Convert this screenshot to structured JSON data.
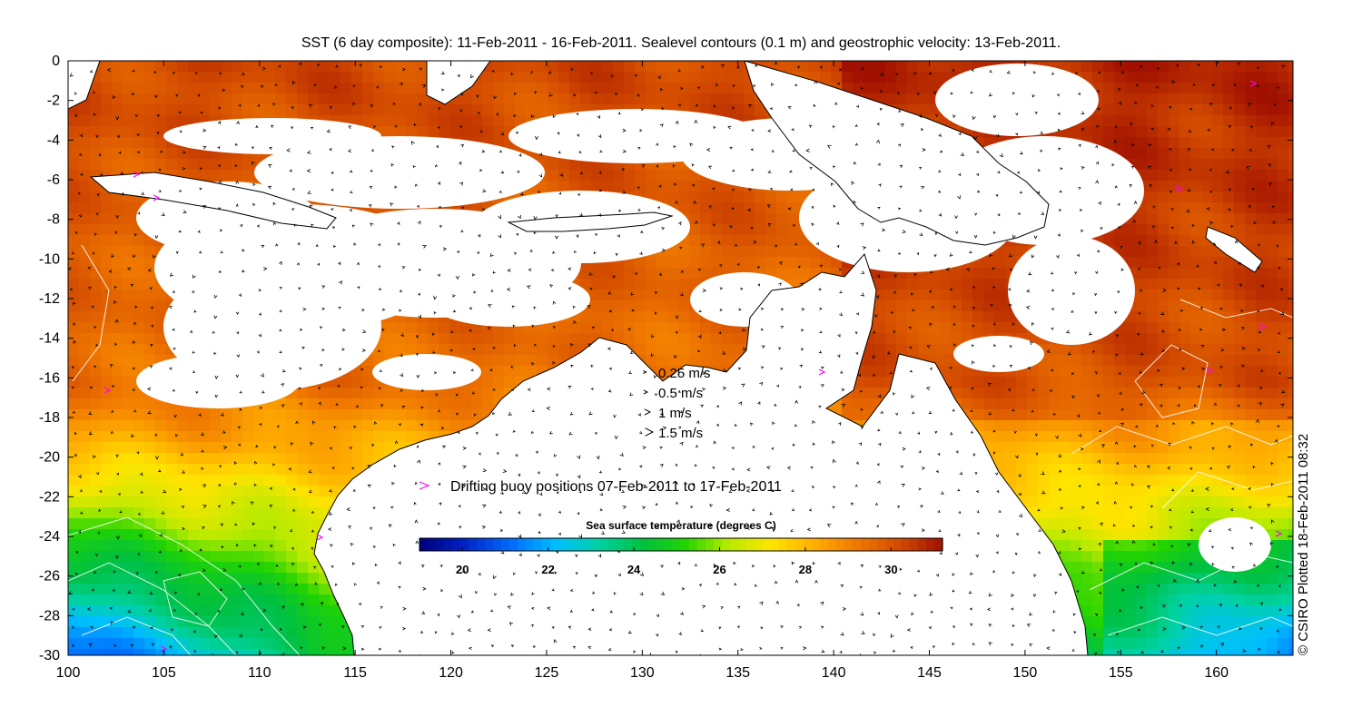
{
  "title": "SST (6 day composite): 11-Feb-2011 - 16-Feb-2011. Sealevel contours (0.1 m) and geostrophic velocity: 13-Feb-2011.",
  "credit": "© CSIRO Plotted 18-Feb-2011 08:32",
  "x_axis": {
    "min": 100,
    "max": 164,
    "ticks": [
      "100",
      "105",
      "110",
      "115",
      "120",
      "125",
      "130",
      "135",
      "140",
      "145",
      "150",
      "155",
      "160"
    ]
  },
  "y_axis": {
    "min": -30,
    "max": 0,
    "ticks": [
      "0",
      "-2",
      "-4",
      "-6",
      "-8",
      "-10",
      "-12",
      "-14",
      "-16",
      "-18",
      "-20",
      "-22",
      "-24",
      "-26",
      "-28",
      "-30"
    ]
  },
  "velocity_legend": [
    {
      "label": "0.25 m/s",
      "speed": 0.25
    },
    {
      "label": "0.5 m/s",
      "speed": 0.5
    },
    {
      "label": "1 m/s",
      "speed": 1
    },
    {
      "label": "1.5 m/s",
      "speed": 1.5
    }
  ],
  "buoy_legend": {
    "label": "Drifting buoy positions 07-Feb-2011 to 17-Feb-2011",
    "color": "#ff00ff"
  },
  "colorbar": {
    "title": "Sea surface temperature (degrees C)",
    "min": 19,
    "max": 31.2,
    "ticks": [
      "20",
      "22",
      "24",
      "26",
      "28",
      "30"
    ],
    "stops": [
      {
        "t": 19.0,
        "c": "#00007a"
      },
      {
        "t": 20.0,
        "c": "#0020c0"
      },
      {
        "t": 21.2,
        "c": "#0070ff"
      },
      {
        "t": 22.2,
        "c": "#00c0ff"
      },
      {
        "t": 23.2,
        "c": "#00d2a0"
      },
      {
        "t": 24.2,
        "c": "#00c040"
      },
      {
        "t": 25.2,
        "c": "#22d400"
      },
      {
        "t": 26.2,
        "c": "#b8ea00"
      },
      {
        "t": 27.2,
        "c": "#ffe400"
      },
      {
        "t": 28.2,
        "c": "#ffae00"
      },
      {
        "t": 29.2,
        "c": "#f07800"
      },
      {
        "t": 30.2,
        "c": "#d24a00"
      },
      {
        "t": 31.2,
        "c": "#a01000"
      }
    ]
  },
  "colors": {
    "land": "#ffffff",
    "coast": "#000000",
    "contour": "#ffffff",
    "arrow": "#000000"
  }
}
